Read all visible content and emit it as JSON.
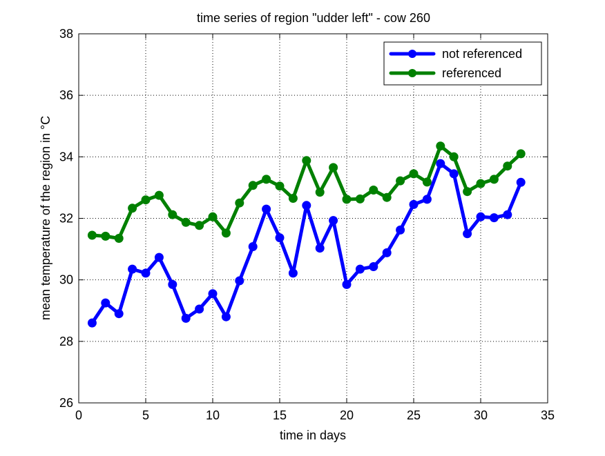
{
  "chart_data": {
    "type": "line",
    "title": "time series of region \"udder left\" - cow 260",
    "xlabel": "time in days",
    "ylabel": "mean temperature of the region in °C",
    "xlim": [
      0,
      35
    ],
    "ylim": [
      26,
      38
    ],
    "xticks": [
      0,
      5,
      10,
      15,
      20,
      25,
      30,
      35
    ],
    "yticks": [
      26,
      28,
      30,
      32,
      34,
      36,
      38
    ],
    "xtick_labels": [
      "0",
      "5",
      "10",
      "15",
      "20",
      "25",
      "30",
      "35"
    ],
    "ytick_labels": [
      "26",
      "28",
      "30",
      "32",
      "34",
      "36",
      "38"
    ],
    "grid": true,
    "legend_position": "top-right",
    "x": [
      1,
      2,
      3,
      4,
      5,
      6,
      7,
      8,
      9,
      10,
      11,
      12,
      13,
      14,
      15,
      16,
      17,
      18,
      19,
      20,
      21,
      22,
      23,
      24,
      25,
      26,
      27,
      28,
      29,
      30,
      31,
      32,
      33
    ],
    "series": [
      {
        "name": "not referenced",
        "color": "#0000ff",
        "values": [
          28.6,
          29.25,
          28.9,
          30.35,
          30.22,
          30.73,
          29.85,
          28.75,
          29.05,
          29.55,
          28.8,
          29.97,
          31.08,
          32.3,
          31.37,
          30.22,
          32.42,
          31.03,
          31.93,
          29.85,
          30.35,
          30.43,
          30.88,
          31.62,
          32.45,
          32.62,
          33.78,
          33.45,
          31.5,
          32.05,
          32.02,
          32.12,
          33.17
        ]
      },
      {
        "name": "referenced",
        "color": "#008000",
        "values": [
          31.45,
          31.42,
          31.35,
          32.33,
          32.6,
          32.75,
          32.12,
          31.87,
          31.77,
          32.05,
          31.52,
          32.5,
          33.07,
          33.27,
          33.05,
          32.65,
          33.88,
          32.85,
          33.65,
          32.62,
          32.63,
          32.92,
          32.68,
          33.22,
          33.45,
          33.18,
          34.35,
          34.0,
          32.87,
          33.13,
          33.27,
          33.7,
          34.1
        ]
      }
    ]
  }
}
